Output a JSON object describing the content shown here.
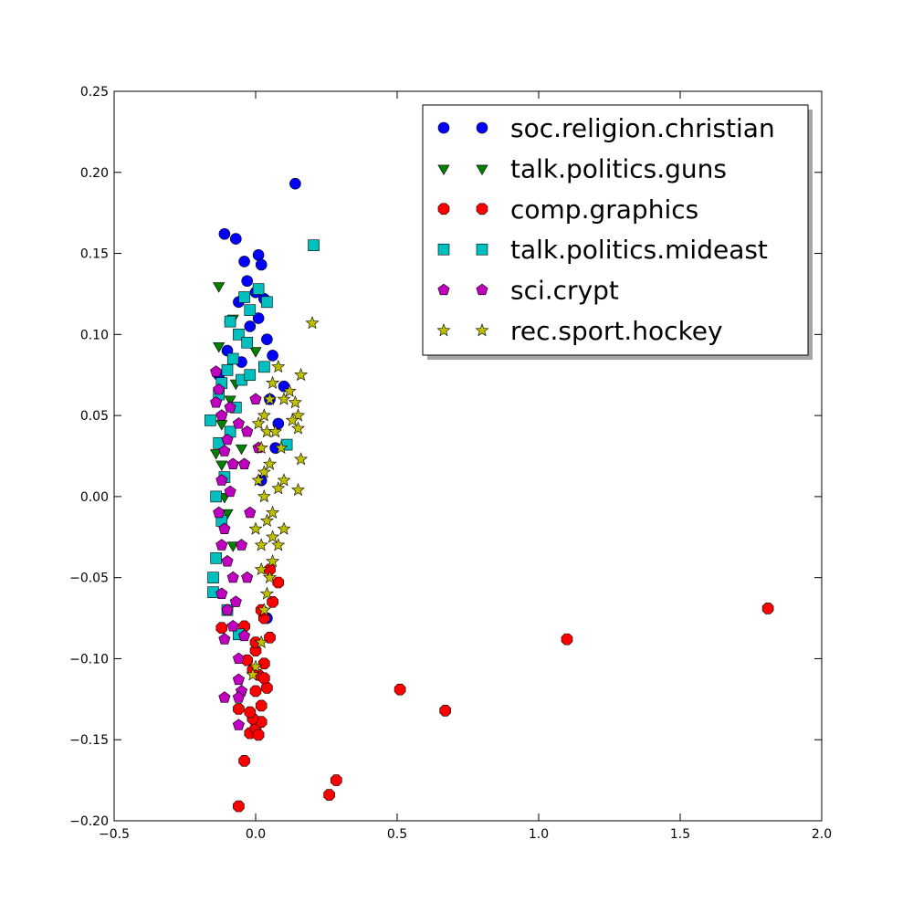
{
  "chart_data": {
    "type": "scatter",
    "title": "",
    "xlabel": "",
    "ylabel": "",
    "xlim": [
      -0.5,
      2.0
    ],
    "ylim": [
      -0.2,
      0.25
    ],
    "xticks": [
      "−0.5",
      "0.0",
      "0.5",
      "1.0",
      "1.5",
      "2.0"
    ],
    "xtick_values": [
      -0.5,
      0.0,
      0.5,
      1.0,
      1.5,
      2.0
    ],
    "yticks": [
      "−0.20",
      "−0.15",
      "−0.10",
      "−0.05",
      "0.00",
      "0.05",
      "0.10",
      "0.15",
      "0.20",
      "0.25"
    ],
    "ytick_values": [
      -0.2,
      -0.15,
      -0.1,
      -0.05,
      0.0,
      0.05,
      0.1,
      0.15,
      0.2,
      0.25
    ],
    "grid": false,
    "legend_position": "top-right",
    "series": [
      {
        "name": "soc.religion.christian",
        "marker": "circle",
        "color": "#0000ff",
        "points": [
          [
            0.14,
            0.193
          ],
          [
            -0.11,
            0.162
          ],
          [
            -0.07,
            0.159
          ],
          [
            0.01,
            0.149
          ],
          [
            -0.04,
            0.145
          ],
          [
            0.02,
            0.143
          ],
          [
            -0.03,
            0.133
          ],
          [
            0.0,
            0.126
          ],
          [
            0.03,
            0.122
          ],
          [
            -0.06,
            0.12
          ],
          [
            0.01,
            0.11
          ],
          [
            -0.09,
            0.108
          ],
          [
            -0.02,
            0.105
          ],
          [
            0.04,
            0.097
          ],
          [
            -0.1,
            0.09
          ],
          [
            0.06,
            0.087
          ],
          [
            -0.05,
            0.083
          ],
          [
            0.1,
            0.068
          ],
          [
            0.05,
            0.06
          ],
          [
            0.08,
            0.045
          ],
          [
            -0.13,
            0.075
          ],
          [
            0.07,
            0.03
          ],
          [
            0.02,
            0.01
          ],
          [
            0.04,
            -0.075
          ]
        ]
      },
      {
        "name": "talk.politics.guns",
        "marker": "triangle-down",
        "color": "#008000",
        "points": [
          [
            -0.13,
            0.13
          ],
          [
            -0.13,
            0.093
          ],
          [
            -0.08,
            0.11
          ],
          [
            -0.14,
            0.027
          ],
          [
            -0.12,
            0.045
          ],
          [
            -0.12,
            0.02
          ],
          [
            -0.11,
            0.0
          ],
          [
            -0.09,
            0.06
          ],
          [
            -0.07,
            0.07
          ],
          [
            0.0,
            0.09
          ],
          [
            -0.05,
            0.03
          ],
          [
            -0.1,
            -0.01
          ],
          [
            -0.08,
            -0.03
          ]
        ]
      },
      {
        "name": "comp.graphics",
        "marker": "octagon",
        "color": "#ff0000",
        "points": [
          [
            1.81,
            -0.069
          ],
          [
            1.1,
            -0.088
          ],
          [
            0.67,
            -0.132
          ],
          [
            0.51,
            -0.119
          ],
          [
            0.285,
            -0.175
          ],
          [
            0.26,
            -0.184
          ],
          [
            -0.06,
            -0.191
          ],
          [
            -0.04,
            -0.163
          ],
          [
            -0.02,
            -0.146
          ],
          [
            0.0,
            -0.143
          ],
          [
            0.01,
            -0.147
          ],
          [
            0.02,
            -0.139
          ],
          [
            -0.01,
            -0.137
          ],
          [
            -0.02,
            -0.133
          ],
          [
            0.02,
            -0.129
          ],
          [
            -0.06,
            -0.131
          ],
          [
            0.0,
            -0.12
          ],
          [
            0.04,
            -0.118
          ],
          [
            0.01,
            -0.11
          ],
          [
            0.03,
            -0.103
          ],
          [
            -0.03,
            -0.101
          ],
          [
            0.0,
            -0.095
          ],
          [
            0.05,
            -0.087
          ],
          [
            -0.12,
            -0.081
          ],
          [
            -0.04,
            -0.08
          ],
          [
            0.03,
            -0.075
          ],
          [
            0.08,
            -0.053
          ],
          [
            0.06,
            -0.065
          ],
          [
            0.05,
            -0.045
          ],
          [
            0.02,
            -0.07
          ],
          [
            0.03,
            -0.112
          ],
          [
            -0.01,
            -0.107
          ],
          [
            0.0,
            -0.09
          ]
        ]
      },
      {
        "name": "talk.politics.mideast",
        "marker": "square",
        "color": "#00bfbf",
        "points": [
          [
            0.205,
            0.155
          ],
          [
            0.04,
            0.12
          ],
          [
            -0.04,
            0.123
          ],
          [
            0.01,
            0.128
          ],
          [
            -0.02,
            0.115
          ],
          [
            -0.09,
            0.108
          ],
          [
            -0.06,
            0.1
          ],
          [
            -0.03,
            0.095
          ],
          [
            -0.08,
            0.085
          ],
          [
            -0.1,
            0.078
          ],
          [
            -0.12,
            0.07
          ],
          [
            -0.05,
            0.072
          ],
          [
            -0.13,
            0.063
          ],
          [
            -0.16,
            0.047
          ],
          [
            -0.13,
            0.033
          ],
          [
            -0.11,
            0.012
          ],
          [
            -0.14,
            0.0
          ],
          [
            -0.14,
            -0.038
          ],
          [
            -0.15,
            -0.05
          ],
          [
            -0.15,
            -0.059
          ],
          [
            -0.12,
            -0.015
          ],
          [
            0.11,
            0.032
          ],
          [
            -0.07,
            0.055
          ],
          [
            -0.02,
            0.075
          ],
          [
            0.03,
            0.08
          ],
          [
            -0.09,
            0.04
          ],
          [
            -0.06,
            -0.085
          ],
          [
            -0.1,
            -0.07
          ]
        ]
      },
      {
        "name": "sci.crypt",
        "marker": "pentagon",
        "color": "#bf00bf",
        "points": [
          [
            -0.14,
            0.077
          ],
          [
            -0.13,
            0.066
          ],
          [
            -0.14,
            0.058
          ],
          [
            -0.12,
            0.05
          ],
          [
            -0.09,
            0.055
          ],
          [
            -0.06,
            0.045
          ],
          [
            -0.1,
            0.035
          ],
          [
            -0.11,
            0.028
          ],
          [
            -0.08,
            0.02
          ],
          [
            -0.12,
            0.01
          ],
          [
            -0.09,
            0.003
          ],
          [
            -0.13,
            -0.01
          ],
          [
            -0.11,
            -0.02
          ],
          [
            -0.12,
            -0.03
          ],
          [
            -0.1,
            -0.04
          ],
          [
            -0.08,
            -0.05
          ],
          [
            -0.12,
            -0.06
          ],
          [
            -0.1,
            -0.07
          ],
          [
            -0.08,
            -0.08
          ],
          [
            -0.11,
            -0.088
          ],
          [
            -0.06,
            -0.1
          ],
          [
            -0.06,
            -0.113
          ],
          [
            -0.05,
            -0.12
          ],
          [
            -0.11,
            -0.124
          ],
          [
            -0.06,
            -0.124
          ],
          [
            -0.06,
            -0.141
          ],
          [
            -0.04,
            -0.086
          ],
          [
            0.0,
            0.06
          ],
          [
            -0.03,
            0.04
          ],
          [
            0.01,
            0.03
          ],
          [
            -0.04,
            0.02
          ],
          [
            -0.02,
            -0.01
          ],
          [
            -0.05,
            -0.03
          ],
          [
            -0.03,
            -0.05
          ],
          [
            -0.07,
            -0.065
          ]
        ]
      },
      {
        "name": "rec.sport.hockey",
        "marker": "star",
        "color": "#bfbf00",
        "points": [
          [
            0.2,
            0.107
          ],
          [
            0.16,
            0.075
          ],
          [
            0.12,
            0.065
          ],
          [
            0.14,
            0.058
          ],
          [
            0.15,
            0.05
          ],
          [
            0.15,
            0.042
          ],
          [
            0.13,
            0.047
          ],
          [
            0.16,
            0.023
          ],
          [
            0.15,
            0.004
          ],
          [
            0.08,
            0.08
          ],
          [
            0.06,
            0.07
          ],
          [
            0.1,
            0.06
          ],
          [
            0.09,
            0.03
          ],
          [
            0.1,
            0.01
          ],
          [
            0.1,
            -0.02
          ],
          [
            0.08,
            -0.03
          ],
          [
            0.06,
            -0.04
          ],
          [
            0.05,
            -0.05
          ],
          [
            0.04,
            -0.06
          ],
          [
            0.03,
            -0.07
          ],
          [
            0.02,
            -0.09
          ],
          [
            0.0,
            -0.105
          ],
          [
            -0.01,
            -0.11
          ],
          [
            0.03,
            0.05
          ],
          [
            0.04,
            0.04
          ],
          [
            0.02,
            0.03
          ],
          [
            0.05,
            0.02
          ],
          [
            0.01,
            0.01
          ],
          [
            0.03,
            0.0
          ],
          [
            0.06,
            -0.01
          ],
          [
            0.0,
            -0.02
          ],
          [
            0.02,
            -0.03
          ],
          [
            0.07,
            0.04
          ],
          [
            0.05,
            0.06
          ],
          [
            0.01,
            0.045
          ],
          [
            0.04,
            -0.015
          ],
          [
            0.02,
            -0.045
          ],
          [
            0.06,
            -0.025
          ],
          [
            0.03,
            0.015
          ],
          [
            0.08,
            0.005
          ]
        ]
      }
    ]
  }
}
